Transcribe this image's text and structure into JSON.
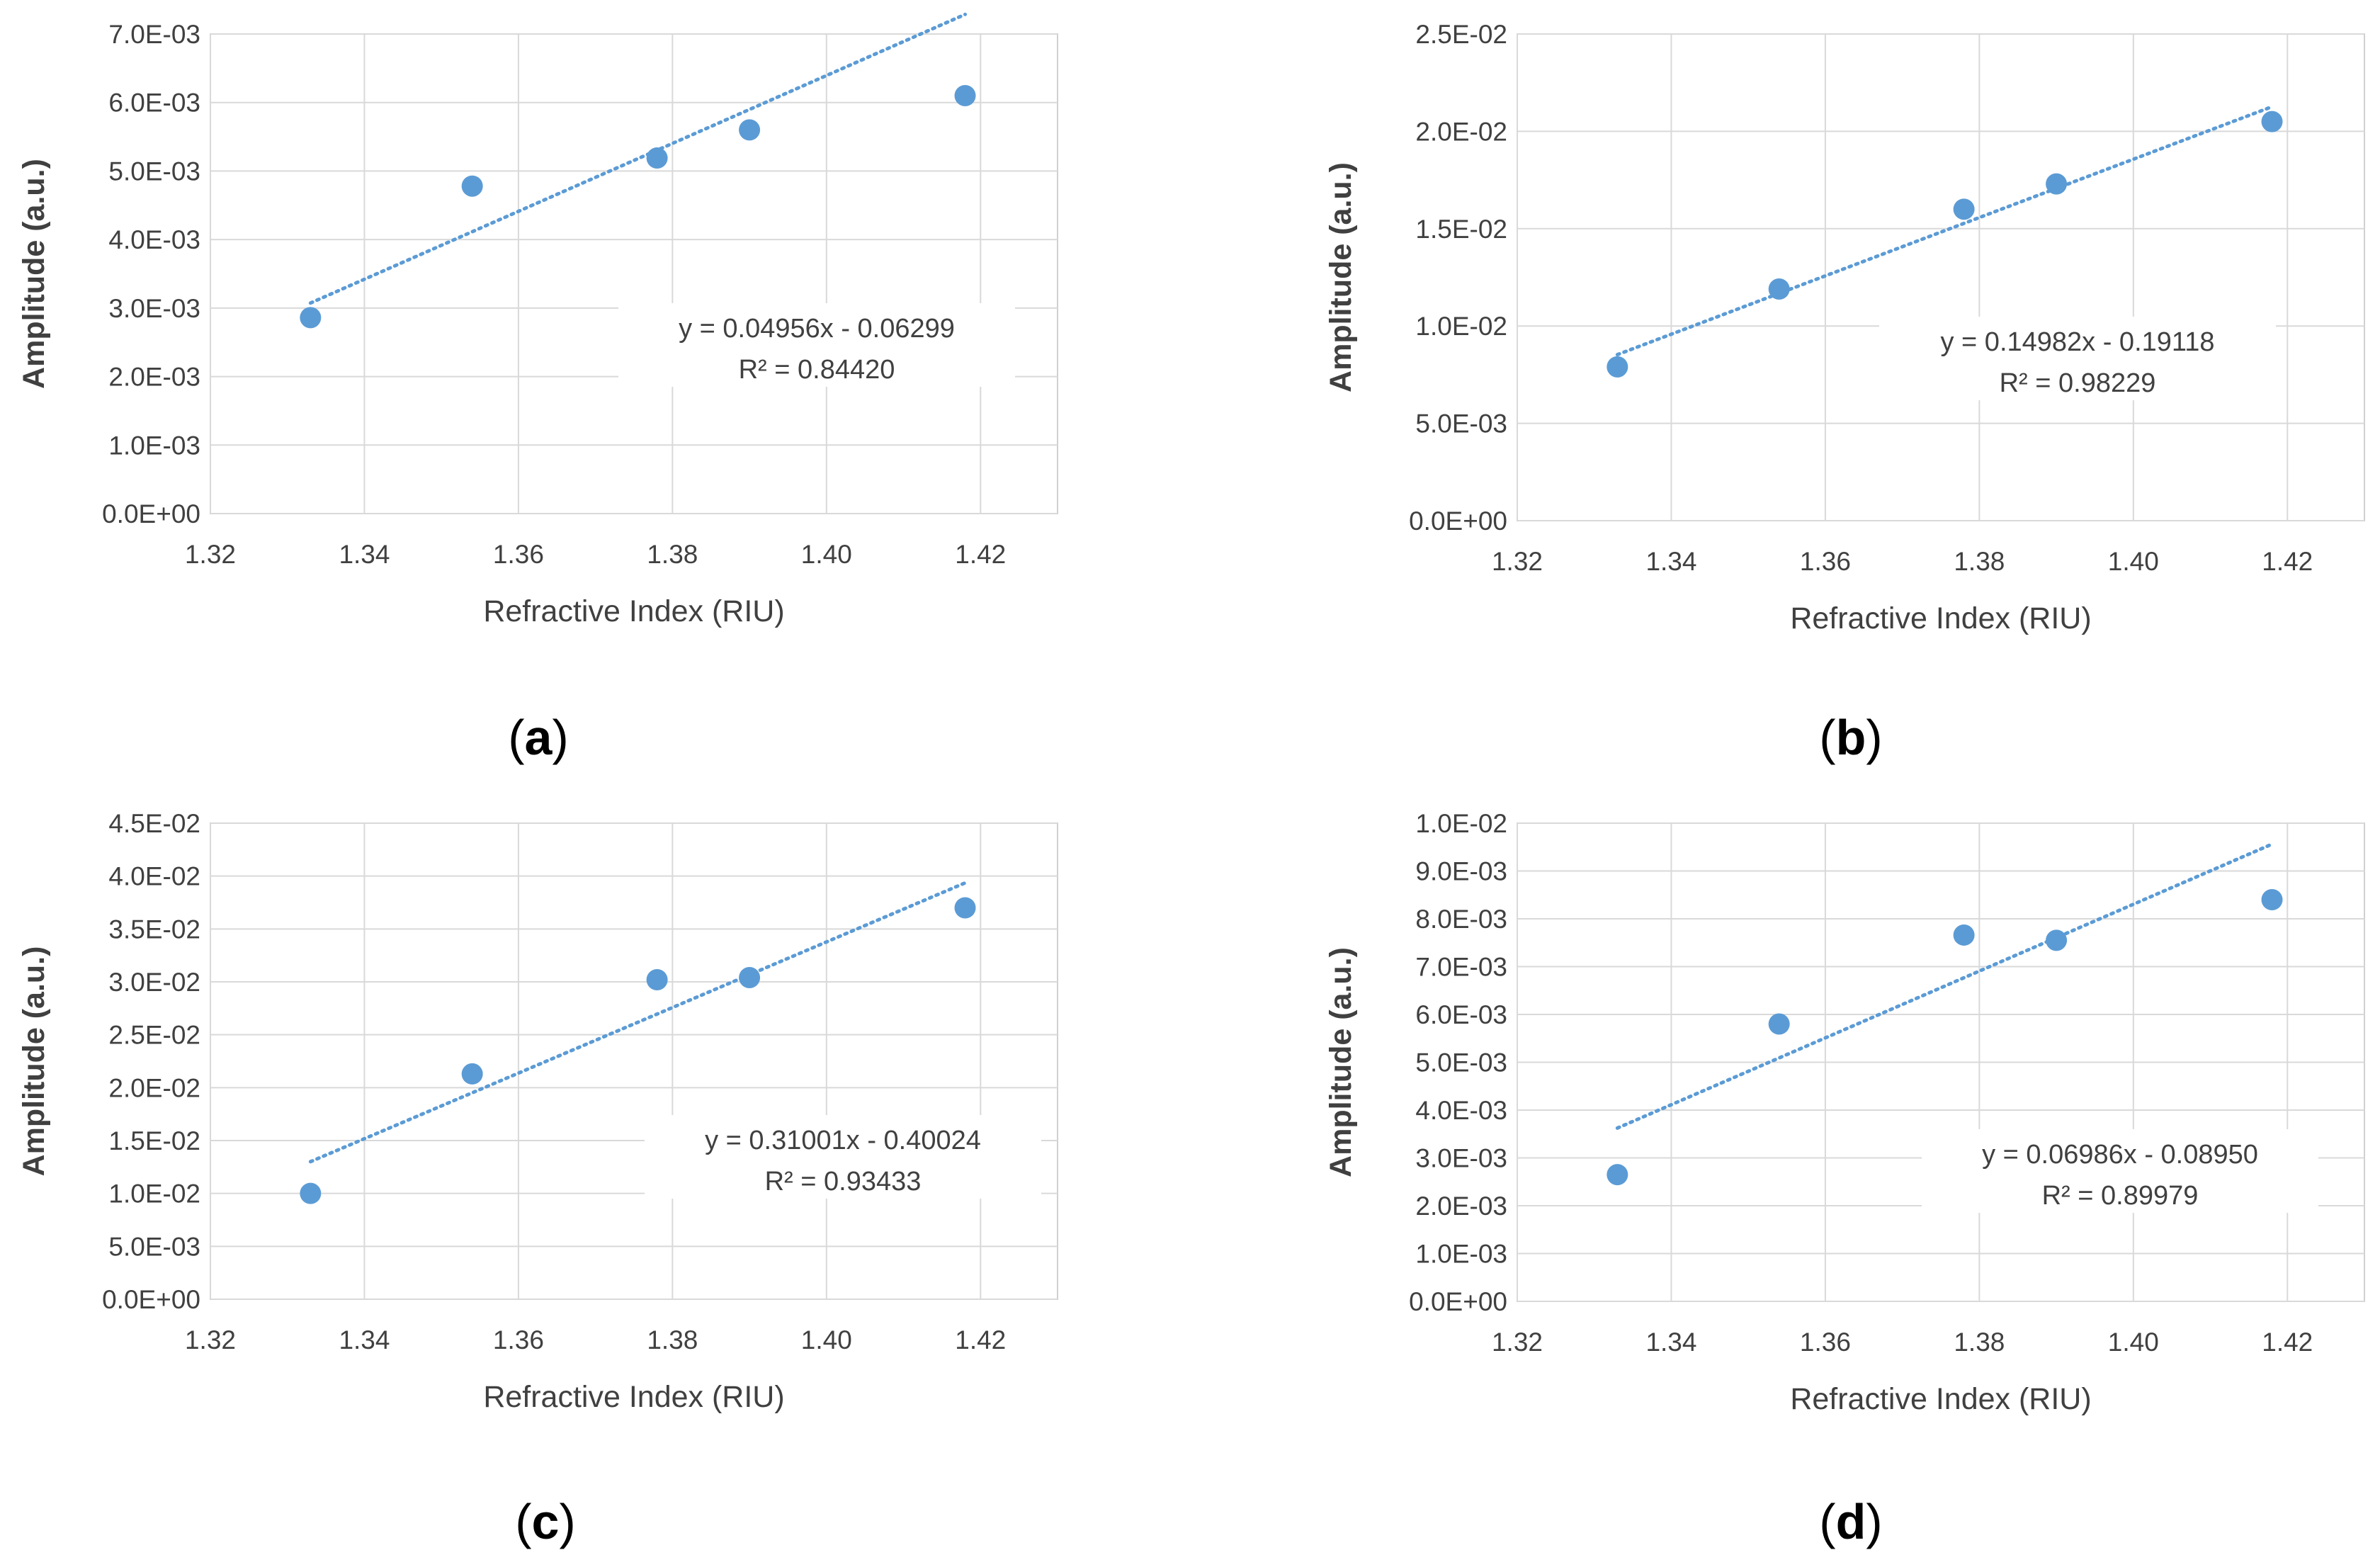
{
  "chart_data": [
    {
      "type": "scatter",
      "panel_label": "a",
      "caption_open": "(",
      "caption_close": ")",
      "xlabel": "Refractive Index (RIU)",
      "ylabel": "Amplitude (a.u.)",
      "x": [
        1.333,
        1.354,
        1.378,
        1.39,
        1.418
      ],
      "y": [
        0.00286,
        0.00478,
        0.00519,
        0.0056,
        0.0061
      ],
      "xlim": [
        1.32,
        1.43
      ],
      "ylim": [
        0,
        0.007
      ],
      "xticks": [
        "1.32",
        "1.34",
        "1.36",
        "1.38",
        "1.40",
        "1.42"
      ],
      "yticks": [
        "0.0E+00",
        "1.0E-03",
        "2.0E-03",
        "3.0E-03",
        "4.0E-03",
        "5.0E-03",
        "6.0E-03",
        "7.0E-03"
      ],
      "trendline": {
        "type": "linear",
        "slope": 0.04956,
        "intercept": -0.06299,
        "x_range": [
          1.333,
          1.418
        ]
      },
      "equation": "y = 0.04956x - 0.06299",
      "r2": "R² = 0.84420",
      "grid": true,
      "marker_color": "#5b9bd5",
      "trend_color": "#5b9bd5"
    },
    {
      "type": "scatter",
      "panel_label": "b",
      "caption_open": "(",
      "caption_close": ")",
      "xlabel": "Refractive Index (RIU)",
      "ylabel": "Amplitude (a.u.)",
      "x": [
        1.333,
        1.354,
        1.378,
        1.39,
        1.418
      ],
      "y": [
        0.0079,
        0.0119,
        0.016,
        0.0173,
        0.0205
      ],
      "xlim": [
        1.32,
        1.43
      ],
      "ylim": [
        0,
        0.025
      ],
      "xticks": [
        "1.32",
        "1.34",
        "1.36",
        "1.38",
        "1.40",
        "1.42"
      ],
      "yticks": [
        "0.0E+00",
        "5.0E-03",
        "1.0E-02",
        "1.5E-02",
        "2.0E-02",
        "2.5E-02"
      ],
      "trendline": {
        "type": "linear",
        "slope": 0.14982,
        "intercept": -0.19118,
        "x_range": [
          1.333,
          1.418
        ]
      },
      "equation": "y = 0.14982x - 0.19118",
      "r2": "R² = 0.98229",
      "grid": true,
      "marker_color": "#5b9bd5",
      "trend_color": "#5b9bd5"
    },
    {
      "type": "scatter",
      "panel_label": "c",
      "caption_open": "(",
      "caption_close": ")",
      "xlabel": "Refractive Index (RIU)",
      "ylabel": "Amplitude (a.u.)",
      "x": [
        1.333,
        1.354,
        1.378,
        1.39,
        1.418
      ],
      "y": [
        0.01,
        0.0213,
        0.0302,
        0.0304,
        0.037
      ],
      "xlim": [
        1.32,
        1.43
      ],
      "ylim": [
        0,
        0.045
      ],
      "xticks": [
        "1.32",
        "1.34",
        "1.36",
        "1.38",
        "1.40",
        "1.42"
      ],
      "yticks": [
        "0.0E+00",
        "5.0E-03",
        "1.0E-02",
        "1.5E-02",
        "2.0E-02",
        "2.5E-02",
        "3.0E-02",
        "3.5E-02",
        "4.0E-02",
        "4.5E-02"
      ],
      "trendline": {
        "type": "linear",
        "slope": 0.31001,
        "intercept": -0.40024,
        "x_range": [
          1.333,
          1.418
        ]
      },
      "equation": "y = 0.31001x - 0.40024",
      "r2": "R² = 0.93433",
      "grid": true,
      "marker_color": "#5b9bd5",
      "trend_color": "#5b9bd5"
    },
    {
      "type": "scatter",
      "panel_label": "d",
      "caption_open": "(",
      "caption_close": ")",
      "xlabel": "Refractive Index (RIU)",
      "ylabel": "Amplitude (a.u.)",
      "x": [
        1.333,
        1.354,
        1.378,
        1.39,
        1.418
      ],
      "y": [
        0.00265,
        0.0058,
        0.00766,
        0.00755,
        0.0084
      ],
      "xlim": [
        1.32,
        1.43
      ],
      "ylim": [
        0,
        0.01
      ],
      "xticks": [
        "1.32",
        "1.34",
        "1.36",
        "1.38",
        "1.40",
        "1.42"
      ],
      "yticks": [
        "0.0E+00",
        "1.0E-03",
        "2.0E-03",
        "3.0E-03",
        "4.0E-03",
        "5.0E-03",
        "6.0E-03",
        "7.0E-03",
        "8.0E-03",
        "9.0E-03",
        "1.0E-02"
      ],
      "trendline": {
        "type": "linear",
        "slope": 0.06986,
        "intercept": -0.0895,
        "x_range": [
          1.333,
          1.418
        ]
      },
      "equation": "y = 0.06986x - 0.08950",
      "r2": "R² = 0.89979",
      "grid": true,
      "marker_color": "#5b9bd5",
      "trend_color": "#5b9bd5"
    }
  ]
}
